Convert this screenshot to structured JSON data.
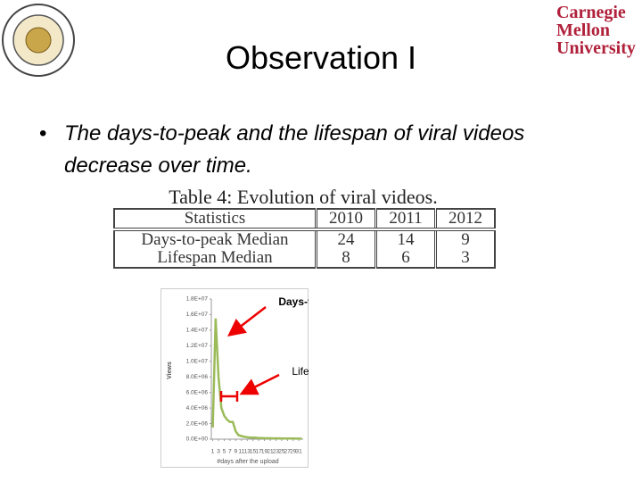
{
  "header": {
    "title": "Observation I",
    "logo_text": [
      "Carnegie",
      "Mellon",
      "University"
    ]
  },
  "bullets": [
    "The days-to-peak and the lifespan of viral videos decrease over time."
  ],
  "table": {
    "caption": "Table 4: Evolution of viral videos.",
    "columns": [
      "Statistics",
      "2010",
      "2011",
      "2012"
    ],
    "rows": [
      [
        "Days-to-peak Median",
        "24",
        "14",
        "9"
      ],
      [
        "Lifespan Median",
        "8",
        "6",
        "3"
      ]
    ]
  },
  "chart_data": {
    "type": "line",
    "ylabel": "Views",
    "xlabel": "#days after the upload",
    "color": "#9bbb59",
    "annotations": [
      "Days-to-peak",
      "Lifespan"
    ],
    "x": [
      1,
      2,
      3,
      4,
      5,
      6,
      7,
      8,
      9,
      10,
      11,
      12,
      13,
      14,
      15,
      16,
      17,
      18,
      19,
      20,
      21,
      22,
      23,
      24,
      25,
      26,
      27,
      28,
      29,
      30,
      31,
      32
    ],
    "values": [
      1500000,
      15500000,
      8000000,
      4000000,
      3000000,
      2500000,
      2200000,
      2200000,
      1000000,
      500000,
      400000,
      300000,
      250000,
      200000,
      200000,
      180000,
      150000,
      150000,
      130000,
      120000,
      110000,
      100000,
      100000,
      100000,
      90000,
      90000,
      80000,
      80000,
      80000,
      70000,
      70000,
      70000
    ],
    "xlim": [
      0.5,
      32.5
    ],
    "xticks": [
      1,
      3,
      5,
      7,
      9,
      11,
      13,
      15,
      17,
      19,
      21,
      23,
      25,
      27,
      29,
      31
    ],
    "ylim": [
      0,
      18000000
    ],
    "yticks": [
      {
        "value": 0,
        "label": "0.0E+00"
      },
      {
        "value": 2000000,
        "label": "2.0E+06"
      },
      {
        "value": 4000000,
        "label": "4.0E+06"
      },
      {
        "value": 6000000,
        "label": "6.0E+06"
      },
      {
        "value": 8000000,
        "label": "8.0E+06"
      },
      {
        "value": 10000000,
        "label": "1.0E+07"
      },
      {
        "value": 12000000,
        "label": "1.2E+07"
      },
      {
        "value": 14000000,
        "label": "1.4E+07"
      },
      {
        "value": 16000000,
        "label": "1.6E+07"
      },
      {
        "value": 18000000,
        "label": "1.8E+07"
      }
    ]
  }
}
